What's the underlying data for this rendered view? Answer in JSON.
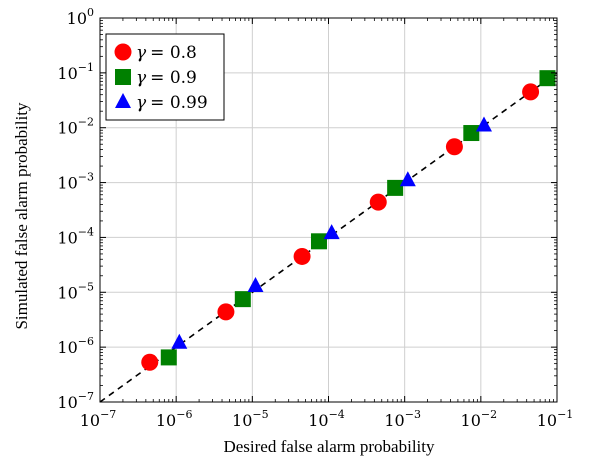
{
  "chart_data": {
    "type": "scatter",
    "xlabel": "Desired false alarm probability",
    "ylabel": "Simulated false alarm probability",
    "xscale": "log",
    "yscale": "log",
    "xlim": [
      1e-07,
      0.1
    ],
    "ylim": [
      1e-07,
      1
    ],
    "grid": true,
    "legend_position": "top-left",
    "x_ticks": [
      {
        "base": "10",
        "exp": "−7"
      },
      {
        "base": "10",
        "exp": "−6"
      },
      {
        "base": "10",
        "exp": "−5"
      },
      {
        "base": "10",
        "exp": "−4"
      },
      {
        "base": "10",
        "exp": "−3"
      },
      {
        "base": "10",
        "exp": "−2"
      },
      {
        "base": "10",
        "exp": "−1"
      }
    ],
    "y_ticks": [
      {
        "base": "10",
        "exp": "−7"
      },
      {
        "base": "10",
        "exp": "−6"
      },
      {
        "base": "10",
        "exp": "−5"
      },
      {
        "base": "10",
        "exp": "−4"
      },
      {
        "base": "10",
        "exp": "−3"
      },
      {
        "base": "10",
        "exp": "−2"
      },
      {
        "base": "10",
        "exp": "−1"
      },
      {
        "base": "10",
        "exp": "0"
      }
    ],
    "reference_line": {
      "style": "dashed",
      "color": "#000000",
      "from": [
        1e-07,
        1e-07
      ],
      "to": [
        0.1,
        0.1
      ]
    },
    "series": [
      {
        "name": "γ = 0.8",
        "legend_symbol": "γ",
        "legend_value": "= 0.8",
        "marker": "circle",
        "color": "#ff0000",
        "x": [
          4.5e-07,
          4.5e-06,
          4.5e-05,
          0.00045,
          0.0045,
          0.045
        ],
        "y": [
          5.3e-07,
          4.4e-06,
          4.5e-05,
          0.00044,
          0.0045,
          0.045
        ]
      },
      {
        "name": "γ = 0.9",
        "legend_symbol": "γ",
        "legend_value": "= 0.9",
        "marker": "square",
        "color": "#008000",
        "x": [
          8e-07,
          7.5e-06,
          7.5e-05,
          0.00075,
          0.0075,
          0.075
        ],
        "y": [
          6.5e-07,
          7.5e-06,
          8.5e-05,
          0.0008,
          0.008,
          0.08
        ]
      },
      {
        "name": "γ = 0.99",
        "legend_symbol": "γ",
        "legend_value": "= 0.99",
        "marker": "triangle",
        "color": "#0000ff",
        "x": [
          1.1e-06,
          1.1e-05,
          0.00011,
          0.0011,
          0.011
        ],
        "y": [
          1.2e-06,
          1.3e-05,
          0.00012,
          0.0011,
          0.011
        ]
      }
    ]
  }
}
